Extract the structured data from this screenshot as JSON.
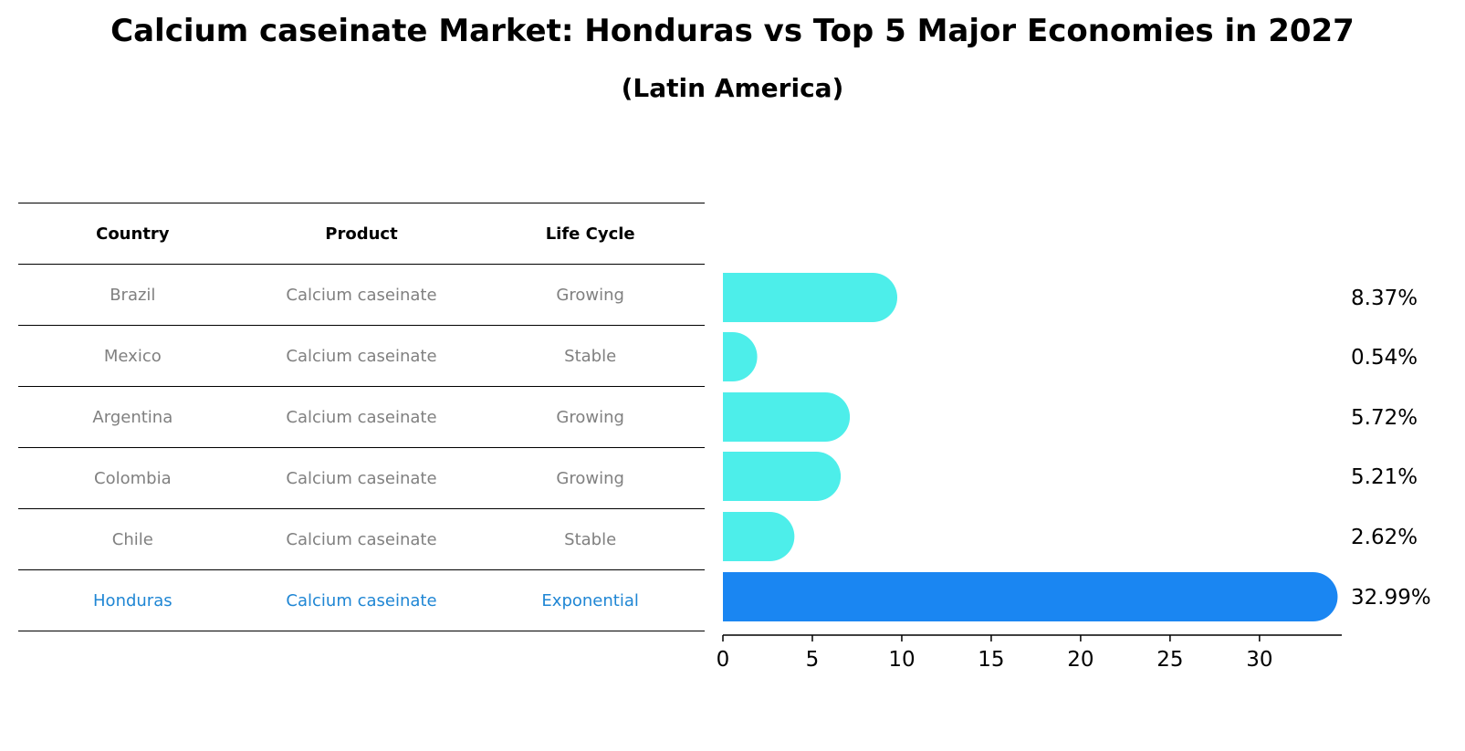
{
  "title": "Calcium caseinate Market: Honduras vs Top 5 Major Economies in 2027",
  "subtitle": "(Latin America)",
  "table": {
    "headers": [
      "Country",
      "Product",
      "Life Cycle"
    ],
    "rows": [
      {
        "country": "Brazil",
        "product": "Calcium caseinate",
        "life_cycle": "Growing"
      },
      {
        "country": "Mexico",
        "product": "Calcium caseinate",
        "life_cycle": "Stable"
      },
      {
        "country": "Argentina",
        "product": "Calcium caseinate",
        "life_cycle": "Growing"
      },
      {
        "country": "Colombia",
        "product": "Calcium caseinate",
        "life_cycle": "Growing"
      },
      {
        "country": "Chile",
        "product": "Calcium caseinate",
        "life_cycle": "Stable"
      },
      {
        "country": "Honduras",
        "product": "Calcium caseinate",
        "life_cycle": "Exponential"
      }
    ]
  },
  "chart_data": {
    "type": "bar",
    "orientation": "horizontal",
    "categories": [
      "Brazil",
      "Mexico",
      "Argentina",
      "Colombia",
      "Chile",
      "Honduras"
    ],
    "values": [
      8.37,
      0.54,
      5.72,
      5.21,
      2.62,
      32.99
    ],
    "value_labels": [
      "8.37%",
      "0.54%",
      "5.72%",
      "5.21%",
      "2.62%",
      "32.99%"
    ],
    "xlim": [
      0,
      34.6
    ],
    "xticks": [
      0,
      5,
      10,
      15,
      20,
      25,
      30
    ],
    "highlight_category": "Honduras",
    "colors": {
      "default": "#4deeea",
      "highlight": "#1a86f2"
    },
    "grid": false
  }
}
